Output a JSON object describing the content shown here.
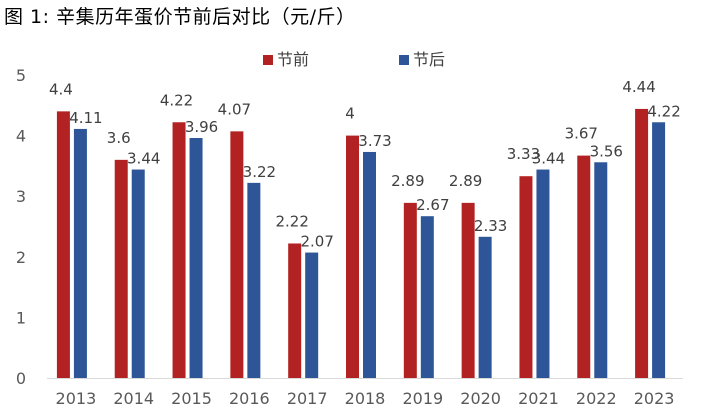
{
  "figure": {
    "title": "图 1:  辛集历年蛋价节前后对比（元/斤）"
  },
  "chart_data": {
    "type": "bar",
    "categories": [
      "2013",
      "2014",
      "2015",
      "2016",
      "2017",
      "2018",
      "2019",
      "2020",
      "2021",
      "2022",
      "2023"
    ],
    "series": [
      {
        "name": "节前",
        "color": "#B22222",
        "values": [
          4.4,
          3.6,
          4.22,
          4.07,
          2.22,
          4,
          2.89,
          2.89,
          3.33,
          3.67,
          4.44
        ],
        "labels": [
          "4.4",
          "3.6",
          "4.22",
          "4.07",
          "2.22",
          "4",
          "2.89",
          "2.89",
          "3.33",
          "3.67",
          "4.44"
        ]
      },
      {
        "name": "节后",
        "color": "#2E5597",
        "values": [
          4.11,
          3.44,
          3.96,
          3.22,
          2.07,
          3.73,
          2.67,
          2.33,
          3.44,
          3.56,
          4.22
        ],
        "labels": [
          "4.11",
          "3.44",
          "3.96",
          "3.22",
          "2.07",
          "3.73",
          "2.67",
          "2.33",
          "3.44",
          "3.56",
          "4.22"
        ]
      }
    ],
    "ylim": [
      0,
      5
    ],
    "yticks": [
      0,
      1,
      2,
      3,
      4,
      5
    ],
    "grid": false,
    "legend_position": "top"
  }
}
